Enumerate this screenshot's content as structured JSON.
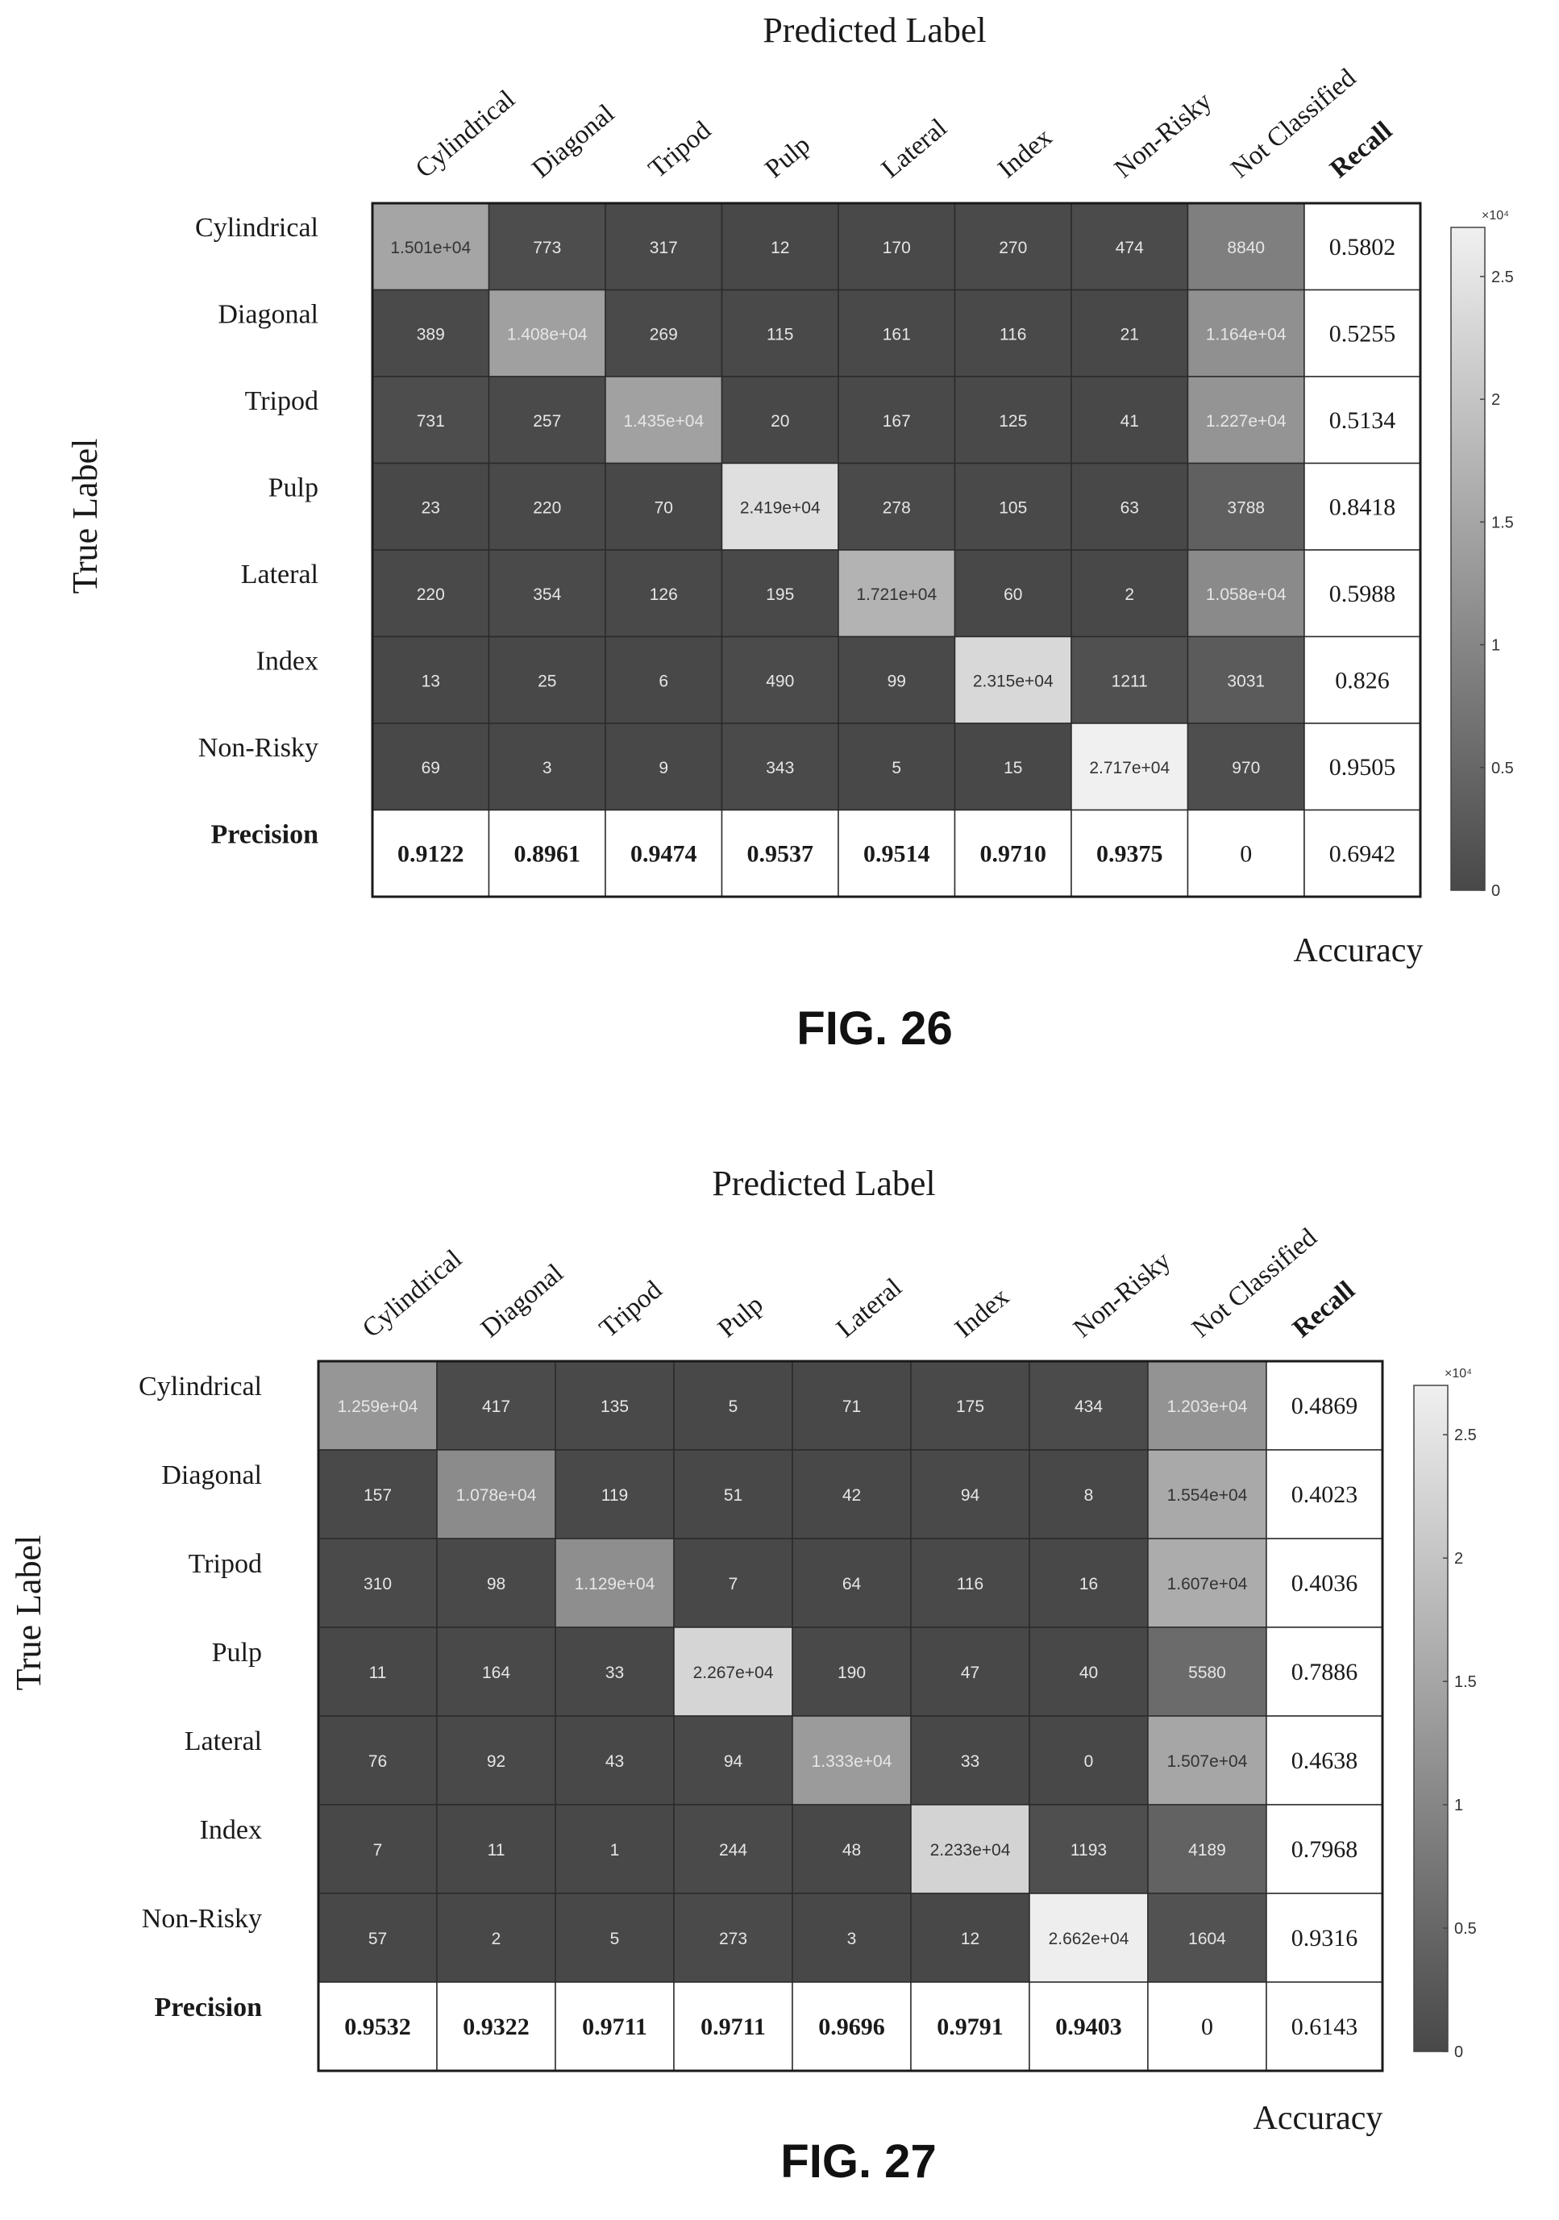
{
  "figures": [
    {
      "caption": "FIG. 26",
      "x_title": "Predicted Label",
      "y_title": "True Label",
      "col_labels": [
        "Cylindrical",
        "Diagonal",
        "Tripod",
        "Pulp",
        "Lateral",
        "Index",
        "Non-Risky",
        "Not Classified"
      ],
      "recall_header": "Recall",
      "row_labels": [
        "Cylindrical",
        "Diagonal",
        "Tripod",
        "Pulp",
        "Lateral",
        "Index",
        "Non-Risky"
      ],
      "precision_label": "Precision",
      "accuracy_label": "Accuracy",
      "cell_text": [
        [
          "1.501e+04",
          "773",
          "317",
          "12",
          "170",
          "270",
          "474",
          "8840"
        ],
        [
          "389",
          "1.408e+04",
          "269",
          "115",
          "161",
          "116",
          "21",
          "1.164e+04"
        ],
        [
          "731",
          "257",
          "1.435e+04",
          "20",
          "167",
          "125",
          "41",
          "1.227e+04"
        ],
        [
          "23",
          "220",
          "70",
          "2.419e+04",
          "278",
          "105",
          "63",
          "3788"
        ],
        [
          "220",
          "354",
          "126",
          "195",
          "1.721e+04",
          "60",
          "2",
          "1.058e+04"
        ],
        [
          "13",
          "25",
          "6",
          "490",
          "99",
          "2.315e+04",
          "1211",
          "3031"
        ],
        [
          "69",
          "3",
          "9",
          "343",
          "5",
          "15",
          "2.717e+04",
          "970"
        ]
      ],
      "recall": [
        "0.5802",
        "0.5255",
        "0.5134",
        "0.8418",
        "0.5988",
        "0.826",
        "0.9505"
      ],
      "precision": [
        "0.9122",
        "0.8961",
        "0.9474",
        "0.9537",
        "0.9514",
        "0.9710",
        "0.9375",
        "0"
      ],
      "accuracy": "0.6942",
      "colorbar": {
        "exponent": "×10⁴",
        "ticks": [
          {
            "label": "0",
            "value": 0
          },
          {
            "label": "0.5",
            "value": 5000
          },
          {
            "label": "1",
            "value": 10000
          },
          {
            "label": "1.5",
            "value": 15000
          },
          {
            "label": "2",
            "value": 20000
          },
          {
            "label": "2.5",
            "value": 25000
          }
        ]
      }
    },
    {
      "caption": "FIG. 27",
      "x_title": "Predicted Label",
      "y_title": "True Label",
      "col_labels": [
        "Cylindrical",
        "Diagonal",
        "Tripod",
        "Pulp",
        "Lateral",
        "Index",
        "Non-Risky",
        "Not Classified"
      ],
      "recall_header": "Recall",
      "row_labels": [
        "Cylindrical",
        "Diagonal",
        "Tripod",
        "Pulp",
        "Lateral",
        "Index",
        "Non-Risky"
      ],
      "precision_label": "Precision",
      "accuracy_label": "Accuracy",
      "cell_text": [
        [
          "1.259e+04",
          "417",
          "135",
          "5",
          "71",
          "175",
          "434",
          "1.203e+04"
        ],
        [
          "157",
          "1.078e+04",
          "119",
          "51",
          "42",
          "94",
          "8",
          "1.554e+04"
        ],
        [
          "310",
          "98",
          "1.129e+04",
          "7",
          "64",
          "116",
          "16",
          "1.607e+04"
        ],
        [
          "11",
          "164",
          "33",
          "2.267e+04",
          "190",
          "47",
          "40",
          "5580"
        ],
        [
          "76",
          "92",
          "43",
          "94",
          "1.333e+04",
          "33",
          "0",
          "1.507e+04"
        ],
        [
          "7",
          "11",
          "1",
          "244",
          "48",
          "2.233e+04",
          "1193",
          "4189"
        ],
        [
          "57",
          "2",
          "5",
          "273",
          "3",
          "12",
          "2.662e+04",
          "1604"
        ]
      ],
      "recall": [
        "0.4869",
        "0.4023",
        "0.4036",
        "0.7886",
        "0.4638",
        "0.7968",
        "0.9316"
      ],
      "precision": [
        "0.9532",
        "0.9322",
        "0.9711",
        "0.9711",
        "0.9696",
        "0.9791",
        "0.9403",
        "0"
      ],
      "accuracy": "0.6143",
      "colorbar": {
        "exponent": "×10⁴",
        "ticks": [
          {
            "label": "0",
            "value": 0
          },
          {
            "label": "0.5",
            "value": 5000
          },
          {
            "label": "1",
            "value": 10000
          },
          {
            "label": "1.5",
            "value": 15000
          },
          {
            "label": "2",
            "value": 20000
          },
          {
            "label": "2.5",
            "value": 25000
          }
        ]
      }
    }
  ],
  "chart_data": [
    {
      "type": "heatmap",
      "title": "FIG. 26",
      "xlabel": "Predicted Label",
      "ylabel": "True Label",
      "x_categories": [
        "Cylindrical",
        "Diagonal",
        "Tripod",
        "Pulp",
        "Lateral",
        "Index",
        "Non-Risky",
        "Not Classified"
      ],
      "y_categories": [
        "Cylindrical",
        "Diagonal",
        "Tripod",
        "Pulp",
        "Lateral",
        "Index",
        "Non-Risky"
      ],
      "values": [
        [
          15010,
          773,
          317,
          12,
          170,
          270,
          474,
          8840
        ],
        [
          389,
          14080,
          269,
          115,
          161,
          116,
          21,
          11640
        ],
        [
          731,
          257,
          14350,
          20,
          167,
          125,
          41,
          12270
        ],
        [
          23,
          220,
          70,
          24190,
          278,
          105,
          63,
          3788
        ],
        [
          220,
          354,
          126,
          195,
          17210,
          60,
          2,
          10580
        ],
        [
          13,
          25,
          6,
          490,
          99,
          23150,
          1211,
          3031
        ],
        [
          69,
          3,
          9,
          343,
          5,
          15,
          27170,
          970
        ]
      ],
      "recall": [
        0.5802,
        0.5255,
        0.5134,
        0.8418,
        0.5988,
        0.826,
        0.9505
      ],
      "precision": [
        0.9122,
        0.8961,
        0.9474,
        0.9537,
        0.9514,
        0.971,
        0.9375,
        0
      ],
      "accuracy": 0.6942,
      "color_range": [
        0,
        27000
      ]
    },
    {
      "type": "heatmap",
      "title": "FIG. 27",
      "xlabel": "Predicted Label",
      "ylabel": "True Label",
      "x_categories": [
        "Cylindrical",
        "Diagonal",
        "Tripod",
        "Pulp",
        "Lateral",
        "Index",
        "Non-Risky",
        "Not Classified"
      ],
      "y_categories": [
        "Cylindrical",
        "Diagonal",
        "Tripod",
        "Pulp",
        "Lateral",
        "Index",
        "Non-Risky"
      ],
      "values": [
        [
          12590,
          417,
          135,
          5,
          71,
          175,
          434,
          12030
        ],
        [
          157,
          10780,
          119,
          51,
          42,
          94,
          8,
          15540
        ],
        [
          310,
          98,
          11290,
          7,
          64,
          116,
          16,
          16070
        ],
        [
          11,
          164,
          33,
          22670,
          190,
          47,
          40,
          5580
        ],
        [
          76,
          92,
          43,
          94,
          13330,
          33,
          0,
          15070
        ],
        [
          7,
          11,
          1,
          244,
          48,
          22330,
          1193,
          4189
        ],
        [
          57,
          2,
          5,
          273,
          3,
          12,
          26620,
          1604
        ]
      ],
      "recall": [
        0.4869,
        0.4023,
        0.4036,
        0.7886,
        0.4638,
        0.7968,
        0.9316
      ],
      "precision": [
        0.9532,
        0.9322,
        0.9711,
        0.9711,
        0.9696,
        0.9791,
        0.9403,
        0
      ],
      "accuracy": 0.6143,
      "color_range": [
        0,
        27000
      ]
    }
  ]
}
